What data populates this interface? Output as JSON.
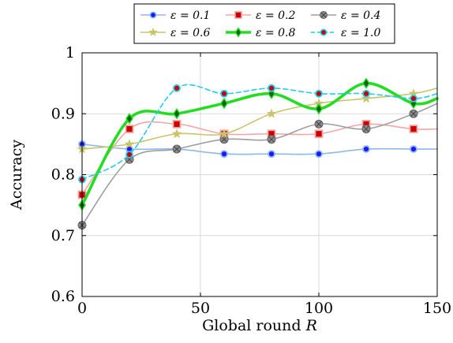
{
  "chart_data": {
    "type": "line",
    "xlabel": "Global round R",
    "ylabel": "Accuracy",
    "xlim": [
      0,
      150
    ],
    "ylim": [
      0.6,
      1.0
    ],
    "xticks": [
      0,
      50,
      100,
      150
    ],
    "yticks": [
      0.6,
      0.7,
      0.8,
      0.9,
      1.0
    ],
    "ytick_labels": [
      "0.6",
      "0.7",
      "0.8",
      "0.9",
      "1"
    ],
    "grid": true,
    "legend_position": "top",
    "x": [
      0,
      20,
      40,
      60,
      80,
      100,
      120,
      140,
      150
    ],
    "series": [
      {
        "name": "ε = 0.1",
        "color": "#8fb8e8",
        "marker": "circle",
        "marker_fill": "#1a1aff",
        "marker_edge": "#8fb8e8",
        "dashed": false,
        "width": 1.6,
        "values": [
          0.85,
          0.842,
          0.842,
          0.834,
          0.834,
          0.834,
          0.842,
          0.842,
          0.842
        ]
      },
      {
        "name": "ε = 0.2",
        "color": "#f4a6a6",
        "marker": "square",
        "marker_fill": "#cc0000",
        "marker_edge": "#f4a6a6",
        "dashed": false,
        "width": 1.6,
        "values": [
          0.767,
          0.875,
          0.883,
          0.867,
          0.867,
          0.867,
          0.883,
          0.875,
          0.875
        ]
      },
      {
        "name": "ε = 0.4",
        "color": "#9e9e9e",
        "marker": "circle-x",
        "marker_fill": "#8a8a8a",
        "marker_edge": "#666666",
        "dashed": false,
        "width": 1.6,
        "values": [
          0.717,
          0.825,
          0.842,
          0.858,
          0.858,
          0.883,
          0.875,
          0.9,
          0.917
        ]
      },
      {
        "name": "ε = 0.6",
        "color": "#c8c46a",
        "marker": "star",
        "marker_fill": "#c8c46a",
        "marker_edge": "#c8c46a",
        "dashed": false,
        "width": 1.6,
        "values": [
          0.842,
          0.85,
          0.867,
          0.867,
          0.9,
          0.917,
          0.925,
          0.933,
          0.942
        ]
      },
      {
        "name": "ε = 0.8",
        "color": "#22dd22",
        "marker": "diamond",
        "marker_fill": "#116611",
        "marker_edge": "#116611",
        "dashed": false,
        "width": 3.6,
        "values": [
          0.75,
          0.892,
          0.9,
          0.917,
          0.933,
          0.908,
          0.95,
          0.917,
          0.925
        ]
      },
      {
        "name": "ε = 1.0",
        "color": "#22ccee",
        "marker": "circle",
        "marker_fill": "#cc0000",
        "marker_edge": "#22ccee",
        "dashed": true,
        "width": 1.6,
        "values": [
          0.792,
          0.833,
          0.942,
          0.933,
          0.942,
          0.933,
          0.933,
          0.925,
          0.933
        ]
      }
    ]
  }
}
